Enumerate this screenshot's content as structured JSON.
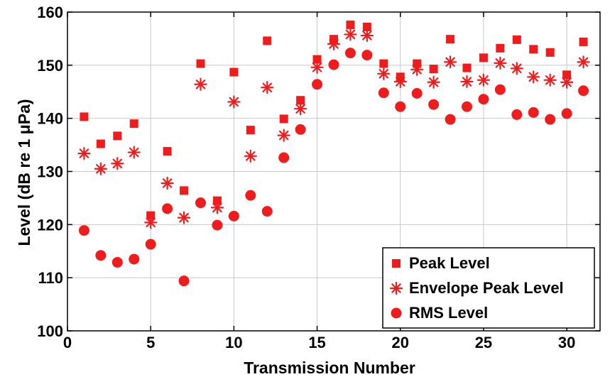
{
  "chart_data": {
    "type": "scatter",
    "title": "",
    "xlabel": "Transmission Number",
    "ylabel": "Level (dB re 1 μPa)",
    "xlim": [
      0,
      32
    ],
    "ylim": [
      100,
      160
    ],
    "xticks": [
      0,
      5,
      10,
      15,
      20,
      25,
      30
    ],
    "yticks": [
      100,
      110,
      120,
      130,
      140,
      150,
      160
    ],
    "grid": true,
    "legend_position": "bottom-right",
    "marker_color": "#ee1c1c",
    "x": [
      1,
      2,
      3,
      4,
      5,
      6,
      7,
      8,
      9,
      10,
      11,
      12,
      13,
      14,
      15,
      16,
      17,
      18,
      19,
      20,
      21,
      22,
      23,
      24,
      25,
      26,
      27,
      28,
      29,
      30,
      31
    ],
    "series": [
      {
        "name": "Peak Level",
        "marker": "square",
        "values": [
          140.3,
          135.2,
          136.7,
          139.0,
          121.7,
          133.8,
          126.4,
          150.3,
          124.5,
          148.7,
          137.8,
          154.6,
          139.9,
          143.4,
          151.1,
          154.9,
          157.6,
          157.2,
          150.3,
          147.8,
          150.3,
          149.3,
          154.9,
          149.5,
          151.4,
          153.2,
          154.8,
          153.0,
          152.4,
          148.2,
          154.4
        ]
      },
      {
        "name": "Envelope Peak Level",
        "marker": "asterisk",
        "values": [
          133.4,
          130.5,
          131.5,
          133.6,
          120.4,
          127.8,
          121.3,
          146.4,
          123.2,
          143.1,
          132.9,
          145.8,
          136.8,
          141.8,
          149.6,
          154.0,
          155.8,
          155.6,
          148.4,
          146.9,
          149.2,
          146.8,
          150.6,
          146.9,
          147.2,
          150.4,
          149.4,
          147.8,
          147.2,
          146.8,
          150.6
        ]
      },
      {
        "name": "RMS Level",
        "marker": "circle",
        "values": [
          118.9,
          114.2,
          112.9,
          113.5,
          116.3,
          123.0,
          109.4,
          124.1,
          119.9,
          121.6,
          125.5,
          122.5,
          132.6,
          137.9,
          146.4,
          150.1,
          152.3,
          151.9,
          144.8,
          142.2,
          144.7,
          142.6,
          139.8,
          142.2,
          143.6,
          145.4,
          140.7,
          141.1,
          139.8,
          140.9,
          145.2
        ]
      }
    ]
  }
}
